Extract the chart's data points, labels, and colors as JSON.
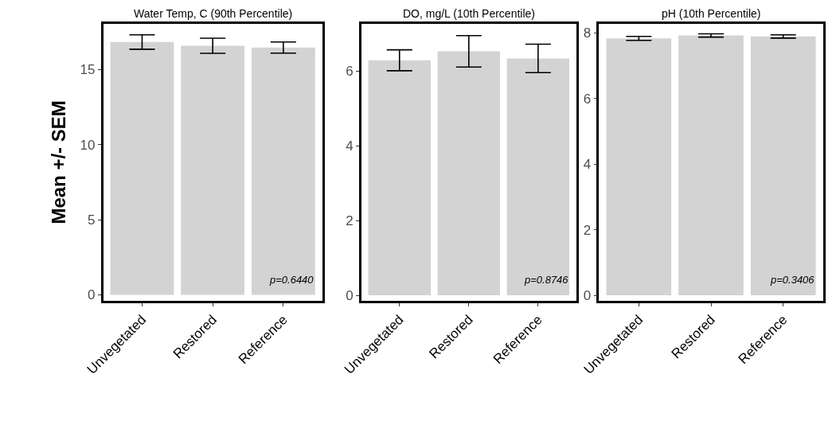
{
  "chart_data": [
    {
      "type": "bar",
      "title": "Water Temp, C (90th Percentile)",
      "ylabel": "Mean +/- SEM",
      "categories": [
        "Unvegetated",
        "Restored",
        "Reference"
      ],
      "values": [
        16.83,
        16.58,
        16.46
      ],
      "errors": [
        0.48,
        0.5,
        0.37
      ],
      "color": "#d3d3d3",
      "ylim": [
        -0.4,
        18.05
      ],
      "yticks": [
        0,
        5,
        10,
        15
      ],
      "annotations": [
        "p=0.6440"
      ]
    },
    {
      "type": "bar",
      "title": "DO, mg/L (10th Percentile)",
      "categories": [
        "Unvegetated",
        "Restored",
        "Reference"
      ],
      "values": [
        6.29,
        6.53,
        6.34
      ],
      "errors": [
        0.28,
        0.42,
        0.38
      ],
      "color": "#d3d3d3",
      "ylim": [
        -0.15,
        7.27
      ],
      "yticks": [
        0,
        2,
        4,
        6
      ],
      "annotations": [
        "p=0.8746"
      ]
    },
    {
      "type": "bar",
      "title": "pH (10th Percentile)",
      "categories": [
        "Unvegetated",
        "Restored",
        "Reference"
      ],
      "values": [
        7.83,
        7.92,
        7.89
      ],
      "errors": [
        0.06,
        0.05,
        0.05
      ],
      "color": "#d3d3d3",
      "ylim": [
        -0.17,
        8.28
      ],
      "yticks": [
        0,
        2,
        4,
        6,
        8
      ],
      "annotations": [
        "p=0.3406"
      ]
    }
  ]
}
